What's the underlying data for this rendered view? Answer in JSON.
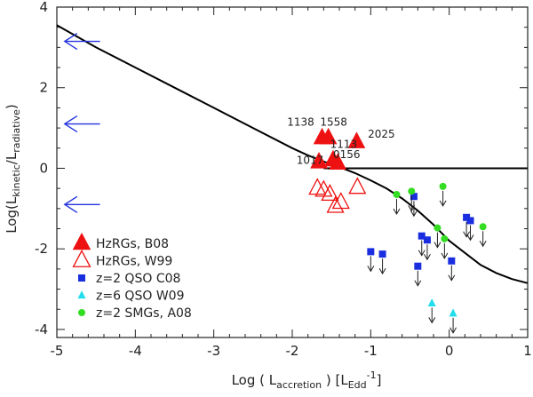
{
  "chart_data": {
    "type": "scatter",
    "xlim": [
      -5,
      1
    ],
    "ylim": [
      -4.2,
      4.0
    ],
    "xticks": [
      "-5",
      "-4",
      "-3",
      "-2",
      "-1",
      "0",
      "1"
    ],
    "yticks": [
      "-4",
      "-2",
      "0",
      "2",
      "4"
    ],
    "xlabel": {
      "prefix": "Log ( L",
      "sub": "accretion",
      "mid": " )   [L",
      "sub2": "Edd",
      "sup": "-1",
      "end": "]"
    },
    "ylabel": {
      "prefix": "Log(L",
      "sub1": "kinetic",
      "mid": "/L",
      "sub2": "radiative",
      "end": ")"
    },
    "curve": {
      "name": "model",
      "x": [
        -5.0,
        -4.5,
        -4.0,
        -3.5,
        -3.0,
        -2.5,
        -2.0,
        -1.8,
        -1.6,
        -1.4,
        -1.2,
        -1.0,
        -0.8,
        -0.6,
        -0.4,
        -0.2,
        0.0,
        0.2,
        0.4,
        0.6,
        0.8,
        1.0
      ],
      "y": [
        3.55,
        3.0,
        2.5,
        2.0,
        1.5,
        1.0,
        0.5,
        0.32,
        0.17,
        0.03,
        -0.12,
        -0.3,
        -0.5,
        -0.75,
        -1.05,
        -1.4,
        -1.8,
        -2.1,
        -2.4,
        -2.6,
        -2.75,
        -2.85
      ]
    },
    "flat_line": {
      "x": [
        -1.6,
        1.0
      ],
      "y": [
        0,
        0
      ]
    },
    "arrows_left_y": [
      3.15,
      1.1,
      -0.9
    ],
    "arrows_left_x": [
      -4.45,
      -4.9
    ],
    "series": [
      {
        "name": "HzRGs, B08",
        "marker": "triangle-filled",
        "color": "#ee1111",
        "points": [
          {
            "x": -1.62,
            "y": 0.75,
            "label": "1138"
          },
          {
            "x": -1.54,
            "y": 0.75,
            "label": "1558"
          },
          {
            "x": -1.18,
            "y": 0.65,
            "label": "2025"
          },
          {
            "x": -1.66,
            "y": 0.15,
            "label": "1017"
          },
          {
            "x": -1.48,
            "y": 0.2,
            "label": "1113"
          },
          {
            "x": -1.42,
            "y": 0.12,
            "label": "0156"
          }
        ]
      },
      {
        "name": "HzRGs, W99",
        "marker": "triangle-open",
        "color": "#ee1111",
        "points": [
          {
            "x": -1.68,
            "y": -0.5
          },
          {
            "x": -1.6,
            "y": -0.55
          },
          {
            "x": -1.52,
            "y": -0.65
          },
          {
            "x": -1.45,
            "y": -0.95
          },
          {
            "x": -1.38,
            "y": -0.85
          },
          {
            "x": -1.17,
            "y": -0.48
          }
        ]
      },
      {
        "name": "z=2 QSO C08",
        "marker": "square",
        "color": "#1a2ee0",
        "points": [
          {
            "x": -1.0,
            "y": -2.07
          },
          {
            "x": -0.85,
            "y": -2.13
          },
          {
            "x": -0.45,
            "y": -0.7
          },
          {
            "x": -0.35,
            "y": -1.68
          },
          {
            "x": -0.28,
            "y": -1.78
          },
          {
            "x": -0.4,
            "y": -2.43
          },
          {
            "x": 0.22,
            "y": -1.22
          },
          {
            "x": 0.27,
            "y": -1.3
          },
          {
            "x": 0.03,
            "y": -2.3
          }
        ]
      },
      {
        "name": "z=6 QSO W09",
        "marker": "triangle-small",
        "color": "#22ddee",
        "points": [
          {
            "x": -0.22,
            "y": -3.35
          },
          {
            "x": 0.05,
            "y": -3.6
          }
        ]
      },
      {
        "name": "z=2 SMGs, A08",
        "marker": "circle",
        "color": "#33dd22",
        "points": [
          {
            "x": -0.67,
            "y": -0.65
          },
          {
            "x": -0.48,
            "y": -0.57
          },
          {
            "x": -0.08,
            "y": -0.45
          },
          {
            "x": -0.15,
            "y": -1.48
          },
          {
            "x": -0.06,
            "y": -1.75
          },
          {
            "x": 0.43,
            "y": -1.45
          }
        ]
      }
    ]
  }
}
